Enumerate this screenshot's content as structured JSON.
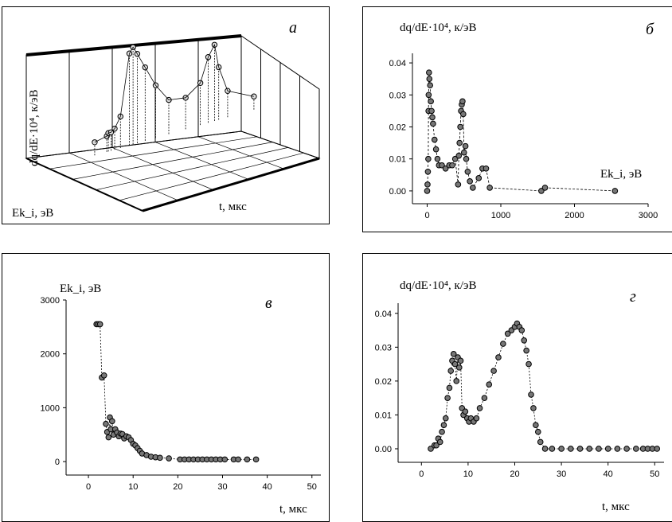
{
  "chart_data": [
    {
      "panel": "a",
      "type": "scatter",
      "letter": "а",
      "ylabel": "dq/dE·10⁴, к/эВ",
      "xlabel": "t, мкс",
      "zlabel": "Ek_i, эВ",
      "points": [
        [
          0.9,
          0.005
        ],
        [
          3.2,
          0.006
        ],
        [
          3.5,
          0.007
        ],
        [
          4.0,
          0.007
        ],
        [
          4.7,
          0.008
        ],
        [
          5.8,
          0.012
        ],
        [
          7.5,
          0.035
        ],
        [
          8.2,
          0.037
        ],
        [
          9.0,
          0.034
        ],
        [
          10.5,
          0.028
        ],
        [
          12.5,
          0.02
        ],
        [
          15.0,
          0.013
        ],
        [
          18.2,
          0.012
        ],
        [
          21.0,
          0.016
        ],
        [
          22.5,
          0.025
        ],
        [
          23.7,
          0.029
        ],
        [
          24.5,
          0.02
        ],
        [
          26.2,
          0.01
        ],
        [
          31.2,
          0.005
        ]
      ]
    },
    {
      "panel": "b",
      "type": "scatter",
      "letter": "б",
      "title": "dq/dE·10⁴, к/эВ",
      "xlabel": "Ek_i, эВ",
      "xlim": [
        -200,
        3000
      ],
      "ylim": [
        -0.004,
        0.043
      ],
      "xticks": [
        0,
        1000,
        2000,
        3000
      ],
      "yticks": [
        "0.00",
        "0.01",
        "0.02",
        "0.03",
        "0.04"
      ],
      "points": [
        [
          0,
          0.0
        ],
        [
          5,
          0.002
        ],
        [
          10,
          0.006
        ],
        [
          15,
          0.01
        ],
        [
          18,
          0.025
        ],
        [
          20,
          0.03
        ],
        [
          25,
          0.037
        ],
        [
          30,
          0.035
        ],
        [
          40,
          0.033
        ],
        [
          50,
          0.028
        ],
        [
          60,
          0.025
        ],
        [
          70,
          0.023
        ],
        [
          80,
          0.021
        ],
        [
          100,
          0.016
        ],
        [
          120,
          0.013
        ],
        [
          140,
          0.01
        ],
        [
          160,
          0.008
        ],
        [
          200,
          0.008
        ],
        [
          250,
          0.007
        ],
        [
          300,
          0.008
        ],
        [
          340,
          0.008
        ],
        [
          380,
          0.01
        ],
        [
          420,
          0.002
        ],
        [
          430,
          0.011
        ],
        [
          440,
          0.015
        ],
        [
          450,
          0.02
        ],
        [
          460,
          0.025
        ],
        [
          470,
          0.027
        ],
        [
          480,
          0.028
        ],
        [
          490,
          0.024
        ],
        [
          500,
          0.012
        ],
        [
          520,
          0.014
        ],
        [
          530,
          0.01
        ],
        [
          550,
          0.006
        ],
        [
          580,
          0.003
        ],
        [
          620,
          0.001
        ],
        [
          700,
          0.004
        ],
        [
          750,
          0.007
        ],
        [
          800,
          0.007
        ],
        [
          850,
          0.001
        ],
        [
          1550,
          0.0
        ],
        [
          1600,
          0.001
        ],
        [
          2550,
          0.0
        ]
      ]
    },
    {
      "panel": "v",
      "type": "scatter",
      "letter": "в",
      "title": "Ek_i, эВ",
      "xlabel": "t, мкс",
      "xlim": [
        -5,
        52
      ],
      "ylim": [
        -250,
        3000
      ],
      "xticks": [
        0,
        10,
        20,
        30,
        40,
        50
      ],
      "yticks": [
        0,
        1000,
        2000,
        3000
      ],
      "points": [
        [
          1.8,
          2550
        ],
        [
          2.2,
          2550
        ],
        [
          2.6,
          2550
        ],
        [
          3.0,
          1560
        ],
        [
          3.5,
          1600
        ],
        [
          3.9,
          700
        ],
        [
          4.2,
          550
        ],
        [
          4.5,
          450
        ],
        [
          4.8,
          820
        ],
        [
          5.0,
          600
        ],
        [
          5.3,
          750
        ],
        [
          5.6,
          500
        ],
        [
          6.0,
          600
        ],
        [
          6.4,
          540
        ],
        [
          6.8,
          470
        ],
        [
          7.2,
          520
        ],
        [
          7.6,
          510
        ],
        [
          8.0,
          430
        ],
        [
          8.5,
          470
        ],
        [
          9.0,
          450
        ],
        [
          9.5,
          400
        ],
        [
          10.0,
          330
        ],
        [
          10.5,
          300
        ],
        [
          11.0,
          250
        ],
        [
          11.5,
          200
        ],
        [
          12.0,
          150
        ],
        [
          13.0,
          120
        ],
        [
          14.0,
          90
        ],
        [
          15.0,
          80
        ],
        [
          16.0,
          70
        ],
        [
          18.0,
          60
        ],
        [
          20.5,
          40
        ],
        [
          21.5,
          40
        ],
        [
          22.5,
          40
        ],
        [
          23.5,
          40
        ],
        [
          24.5,
          40
        ],
        [
          25.5,
          40
        ],
        [
          26.5,
          40
        ],
        [
          27.5,
          40
        ],
        [
          28.5,
          40
        ],
        [
          29.5,
          40
        ],
        [
          30.5,
          40
        ],
        [
          32.5,
          40
        ],
        [
          33.5,
          40
        ],
        [
          35.5,
          40
        ],
        [
          37.5,
          40
        ]
      ]
    },
    {
      "panel": "g",
      "type": "scatter",
      "letter": "г",
      "title": "dq/dE·10⁴, к/эВ",
      "xlabel": "t, мкс",
      "xlim": [
        -5,
        52
      ],
      "ylim": [
        -0.004,
        0.043
      ],
      "xticks": [
        0,
        10,
        20,
        30,
        40,
        50
      ],
      "yticks": [
        "0.00",
        "0.01",
        "0.02",
        "0.03",
        "0.04"
      ],
      "points": [
        [
          2.0,
          0.0
        ],
        [
          2.8,
          0.001
        ],
        [
          3.2,
          0.001
        ],
        [
          3.6,
          0.003
        ],
        [
          4.0,
          0.002
        ],
        [
          4.4,
          0.005
        ],
        [
          4.8,
          0.007
        ],
        [
          5.2,
          0.009
        ],
        [
          5.6,
          0.015
        ],
        [
          6.0,
          0.018
        ],
        [
          6.3,
          0.023
        ],
        [
          6.6,
          0.026
        ],
        [
          6.9,
          0.028
        ],
        [
          7.2,
          0.025
        ],
        [
          7.5,
          0.02
        ],
        [
          7.8,
          0.027
        ],
        [
          8.1,
          0.024
        ],
        [
          8.4,
          0.026
        ],
        [
          8.7,
          0.012
        ],
        [
          9.0,
          0.01
        ],
        [
          9.4,
          0.011
        ],
        [
          9.8,
          0.009
        ],
        [
          10.2,
          0.008
        ],
        [
          10.6,
          0.009
        ],
        [
          11.2,
          0.008
        ],
        [
          11.8,
          0.009
        ],
        [
          12.5,
          0.012
        ],
        [
          13.5,
          0.015
        ],
        [
          14.5,
          0.019
        ],
        [
          15.5,
          0.023
        ],
        [
          16.5,
          0.027
        ],
        [
          17.5,
          0.031
        ],
        [
          18.5,
          0.034
        ],
        [
          19.3,
          0.035
        ],
        [
          20.0,
          0.036
        ],
        [
          20.5,
          0.037
        ],
        [
          21.0,
          0.036
        ],
        [
          21.5,
          0.035
        ],
        [
          22.0,
          0.032
        ],
        [
          22.5,
          0.029
        ],
        [
          23.0,
          0.025
        ],
        [
          23.5,
          0.016
        ],
        [
          24.0,
          0.012
        ],
        [
          24.5,
          0.007
        ],
        [
          25.0,
          0.005
        ],
        [
          25.5,
          0.002
        ],
        [
          26.5,
          0.0
        ],
        [
          28.0,
          0.0
        ],
        [
          30.0,
          0.0
        ],
        [
          32.0,
          0.0
        ],
        [
          34.0,
          0.0
        ],
        [
          36.0,
          0.0
        ],
        [
          38.0,
          0.0
        ],
        [
          40.0,
          0.0
        ],
        [
          42.0,
          0.0
        ],
        [
          44.0,
          0.0
        ],
        [
          46.0,
          0.0
        ],
        [
          47.5,
          0.0
        ],
        [
          48.5,
          0.0
        ],
        [
          49.5,
          0.0
        ],
        [
          50.5,
          0.0
        ]
      ]
    }
  ]
}
